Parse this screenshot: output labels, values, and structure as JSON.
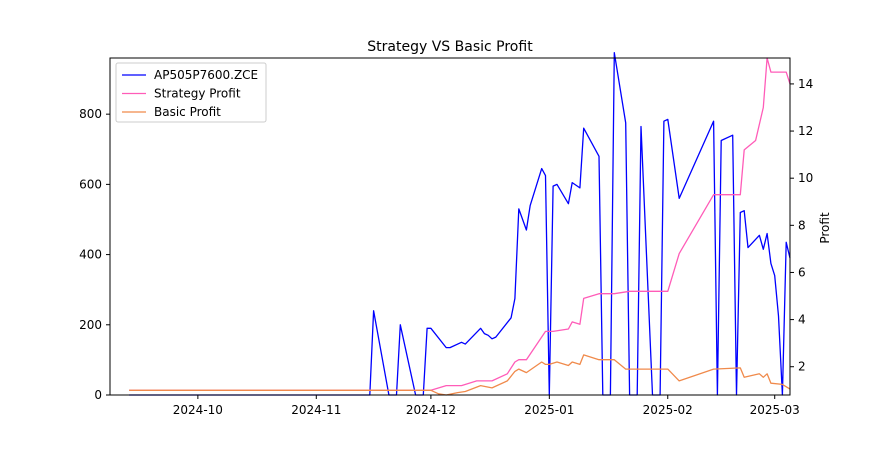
{
  "chart_data": {
    "type": "line",
    "title": "Strategy VS Basic Profit",
    "xlabel": "",
    "ylabel_left": "",
    "ylabel_right": "Profit",
    "x_ticks": [
      "2024-10",
      "2024-11",
      "2024-12",
      "2025-01",
      "2025-02",
      "2025-03"
    ],
    "x_tick_dates": [
      "2024-10-01",
      "2024-11-01",
      "2024-12-01",
      "2025-01-01",
      "2025-02-01",
      "2025-03-01"
    ],
    "xlim": [
      "2024-09-08",
      "2025-03-05"
    ],
    "y_left_ticks": [
      0,
      200,
      400,
      600,
      800
    ],
    "y_left_lim": [
      0,
      960
    ],
    "y_right_ticks": [
      2,
      4,
      6,
      8,
      10,
      12,
      14
    ],
    "y_right_lim": [
      0.8,
      15.1
    ],
    "legend_position": "top-left",
    "colors": {
      "price": "#0000ff",
      "strategy": "#ff5cb8",
      "basic": "#f08a4b"
    },
    "series": [
      {
        "name": "AP505P7600.ZCE",
        "axis": "left",
        "points": [
          [
            "2024-09-13",
            0
          ],
          [
            "2024-11-15",
            0
          ],
          [
            "2024-11-16",
            240
          ],
          [
            "2024-11-20",
            0
          ],
          [
            "2024-11-22",
            0
          ],
          [
            "2024-11-23",
            200
          ],
          [
            "2024-11-27",
            0
          ],
          [
            "2024-11-29",
            0
          ],
          [
            "2024-11-30",
            190
          ],
          [
            "2024-12-01",
            190
          ],
          [
            "2024-12-05",
            135
          ],
          [
            "2024-12-06",
            135
          ],
          [
            "2024-12-09",
            150
          ],
          [
            "2024-12-10",
            145
          ],
          [
            "2024-12-14",
            190
          ],
          [
            "2024-12-15",
            175
          ],
          [
            "2024-12-16",
            170
          ],
          [
            "2024-12-17",
            160
          ],
          [
            "2024-12-18",
            165
          ],
          [
            "2024-12-22",
            220
          ],
          [
            "2024-12-23",
            275
          ],
          [
            "2024-12-24",
            530
          ],
          [
            "2024-12-26",
            470
          ],
          [
            "2024-12-27",
            540
          ],
          [
            "2024-12-30",
            645
          ],
          [
            "2024-12-31",
            625
          ],
          [
            "2025-01-01",
            0
          ],
          [
            "2025-01-02",
            595
          ],
          [
            "2025-01-03",
            600
          ],
          [
            "2025-01-06",
            545
          ],
          [
            "2025-01-07",
            605
          ],
          [
            "2025-01-09",
            590
          ],
          [
            "2025-01-10",
            760
          ],
          [
            "2025-01-14",
            680
          ],
          [
            "2025-01-15",
            0
          ],
          [
            "2025-01-17",
            0
          ],
          [
            "2025-01-18",
            975
          ],
          [
            "2025-01-21",
            775
          ],
          [
            "2025-01-22",
            0
          ],
          [
            "2025-01-24",
            0
          ],
          [
            "2025-01-25",
            765
          ],
          [
            "2025-01-28",
            0
          ],
          [
            "2025-01-30",
            0
          ],
          [
            "2025-01-31",
            780
          ],
          [
            "2025-02-01",
            785
          ],
          [
            "2025-02-04",
            560
          ],
          [
            "2025-02-13",
            780
          ],
          [
            "2025-02-14",
            0
          ],
          [
            "2025-02-15",
            725
          ],
          [
            "2025-02-18",
            740
          ],
          [
            "2025-02-19",
            0
          ],
          [
            "2025-02-20",
            520
          ],
          [
            "2025-02-21",
            525
          ],
          [
            "2025-02-22",
            420
          ],
          [
            "2025-02-25",
            455
          ],
          [
            "2025-02-26",
            415
          ],
          [
            "2025-02-27",
            460
          ],
          [
            "2025-02-28",
            375
          ],
          [
            "2025-03-01",
            340
          ],
          [
            "2025-03-02",
            225
          ],
          [
            "2025-03-03",
            0
          ],
          [
            "2025-03-04",
            435
          ],
          [
            "2025-03-05",
            390
          ]
        ]
      },
      {
        "name": "Strategy Profit",
        "axis": "right",
        "points": [
          [
            "2024-09-13",
            1.0
          ],
          [
            "2024-12-01",
            1.0
          ],
          [
            "2024-12-05",
            1.2
          ],
          [
            "2024-12-09",
            1.2
          ],
          [
            "2024-12-13",
            1.4
          ],
          [
            "2024-12-17",
            1.4
          ],
          [
            "2024-12-21",
            1.7
          ],
          [
            "2024-12-23",
            2.2
          ],
          [
            "2024-12-24",
            2.3
          ],
          [
            "2024-12-26",
            2.3
          ],
          [
            "2024-12-31",
            3.5
          ],
          [
            "2025-01-02",
            3.5
          ],
          [
            "2025-01-06",
            3.6
          ],
          [
            "2025-01-07",
            3.9
          ],
          [
            "2025-01-09",
            3.8
          ],
          [
            "2025-01-10",
            4.9
          ],
          [
            "2025-01-14",
            5.1
          ],
          [
            "2025-01-18",
            5.1
          ],
          [
            "2025-01-22",
            5.2
          ],
          [
            "2025-01-28",
            5.2
          ],
          [
            "2025-02-01",
            5.2
          ],
          [
            "2025-02-04",
            6.8
          ],
          [
            "2025-02-13",
            9.3
          ],
          [
            "2025-02-20",
            9.3
          ],
          [
            "2025-02-21",
            11.2
          ],
          [
            "2025-02-24",
            11.6
          ],
          [
            "2025-02-26",
            13.0
          ],
          [
            "2025-02-27",
            15.1
          ],
          [
            "2025-02-28",
            14.5
          ],
          [
            "2025-03-04",
            14.5
          ],
          [
            "2025-03-05",
            14.0
          ]
        ]
      },
      {
        "name": "Basic Profit",
        "axis": "right",
        "points": [
          [
            "2024-09-13",
            1.0
          ],
          [
            "2024-12-01",
            1.0
          ],
          [
            "2024-12-03",
            0.85
          ],
          [
            "2024-12-05",
            0.8
          ],
          [
            "2024-12-08",
            0.9
          ],
          [
            "2024-12-10",
            0.95
          ],
          [
            "2024-12-14",
            1.2
          ],
          [
            "2024-12-17",
            1.1
          ],
          [
            "2024-12-21",
            1.4
          ],
          [
            "2024-12-23",
            1.8
          ],
          [
            "2024-12-24",
            1.9
          ],
          [
            "2024-12-26",
            1.75
          ],
          [
            "2024-12-30",
            2.2
          ],
          [
            "2024-12-31",
            2.1
          ],
          [
            "2025-01-01",
            2.1
          ],
          [
            "2025-01-03",
            2.2
          ],
          [
            "2025-01-06",
            2.05
          ],
          [
            "2025-01-07",
            2.2
          ],
          [
            "2025-01-09",
            2.1
          ],
          [
            "2025-01-10",
            2.5
          ],
          [
            "2025-01-14",
            2.3
          ],
          [
            "2025-01-18",
            2.3
          ],
          [
            "2025-01-21",
            1.9
          ],
          [
            "2025-01-28",
            1.9
          ],
          [
            "2025-02-01",
            1.9
          ],
          [
            "2025-02-04",
            1.4
          ],
          [
            "2025-02-13",
            1.9
          ],
          [
            "2025-02-20",
            1.95
          ],
          [
            "2025-02-21",
            1.55
          ],
          [
            "2025-02-25",
            1.7
          ],
          [
            "2025-02-26",
            1.55
          ],
          [
            "2025-02-27",
            1.7
          ],
          [
            "2025-02-28",
            1.3
          ],
          [
            "2025-03-03",
            1.25
          ],
          [
            "2025-03-05",
            1.05
          ]
        ]
      }
    ]
  }
}
